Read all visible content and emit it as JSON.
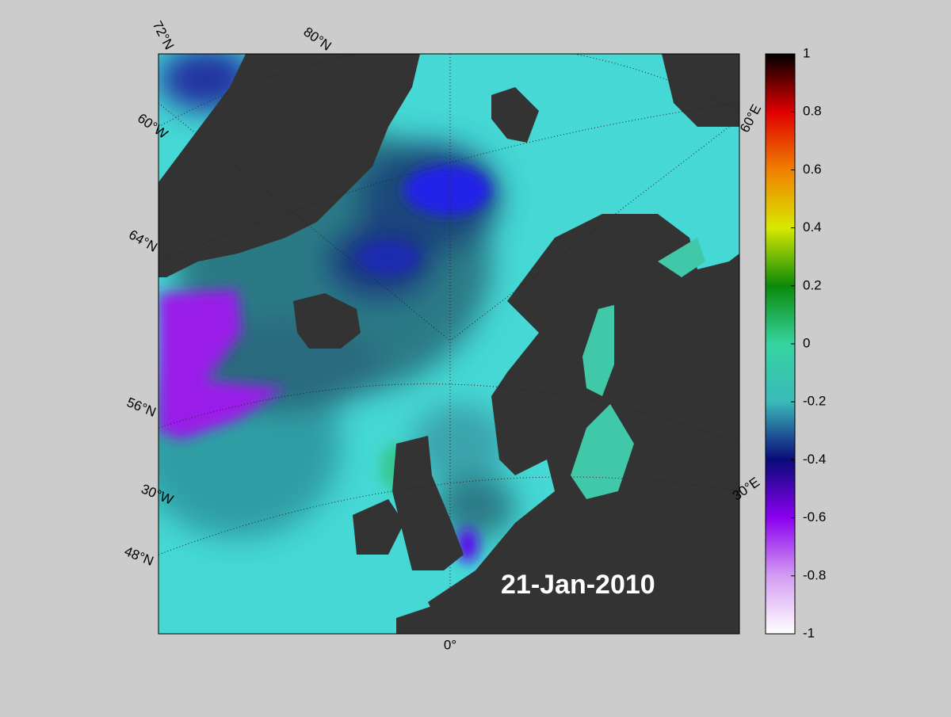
{
  "map": {
    "date": "21-Jan-2010",
    "graticule_labels": [
      "72°N",
      "80°N",
      "60°W",
      "64°N",
      "56°N",
      "30°W",
      "48°N",
      "0°",
      "30°E",
      "60°E"
    ]
  },
  "colorbar": {
    "lim": [
      -1,
      1
    ],
    "ticks": [
      -1,
      -0.8,
      -0.6,
      -0.4,
      -0.2,
      0,
      0.2,
      0.4,
      0.6,
      0.8,
      1
    ],
    "colors": [
      "#ffffff",
      "#d49cf2",
      "#8a00f0",
      "#0a0a7a",
      "#3ab9b9",
      "#35d4a0",
      "#0a8a0a",
      "#d8e800",
      "#f08000",
      "#e00000",
      "#000000"
    ]
  }
}
